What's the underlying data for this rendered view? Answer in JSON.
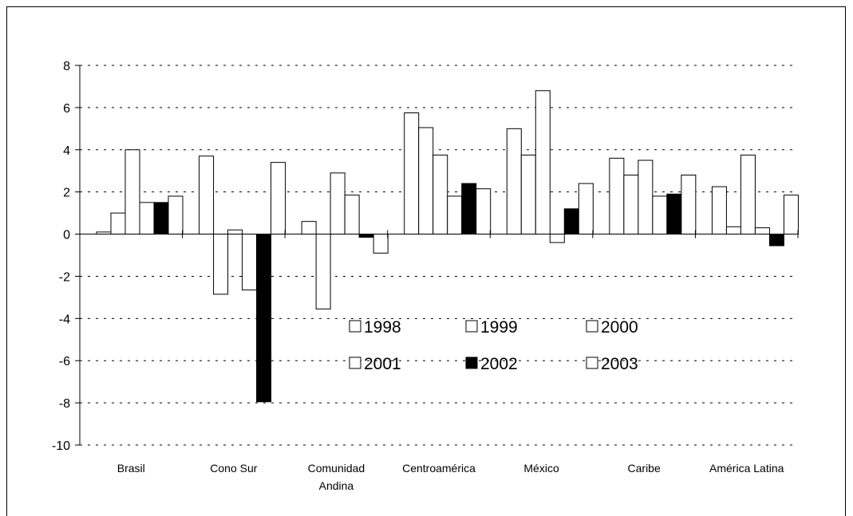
{
  "chart_data": {
    "type": "bar",
    "title": "",
    "xlabel": "",
    "ylabel": "",
    "ylim": [
      -10,
      8
    ],
    "yticks": [
      8,
      6,
      4,
      2,
      0,
      -2,
      -4,
      -6,
      -8,
      -10
    ],
    "grid": true,
    "legend_position": "center",
    "categories": [
      [
        "Brasil"
      ],
      [
        "Cono Sur"
      ],
      [
        "Comunidad",
        "Andina"
      ],
      [
        "Centroamérica"
      ],
      [
        "México"
      ],
      [
        "Caribe"
      ],
      [
        "América Latina"
      ]
    ],
    "series": [
      {
        "name": "1998",
        "fill": "#ffffff",
        "values": [
          0.1,
          3.7,
          0.6,
          5.75,
          5.0,
          3.6,
          2.25
        ]
      },
      {
        "name": "1999",
        "fill": "#ffffff",
        "values": [
          1.0,
          -2.85,
          -3.55,
          5.05,
          3.75,
          2.8,
          0.35
        ]
      },
      {
        "name": "2000",
        "fill": "#ffffff",
        "values": [
          4.0,
          0.2,
          2.9,
          3.75,
          6.8,
          3.5,
          3.75
        ]
      },
      {
        "name": "2001",
        "fill": "#ffffff",
        "values": [
          1.5,
          -2.65,
          1.85,
          1.8,
          -0.4,
          1.8,
          0.3
        ]
      },
      {
        "name": "2002",
        "fill": "#000000",
        "values": [
          1.5,
          -7.95,
          -0.15,
          2.4,
          1.2,
          1.9,
          -0.55
        ]
      },
      {
        "name": "2003",
        "fill": "#ffffff",
        "values": [
          1.8,
          3.4,
          -0.9,
          2.15,
          2.4,
          2.8,
          1.85
        ]
      }
    ]
  }
}
